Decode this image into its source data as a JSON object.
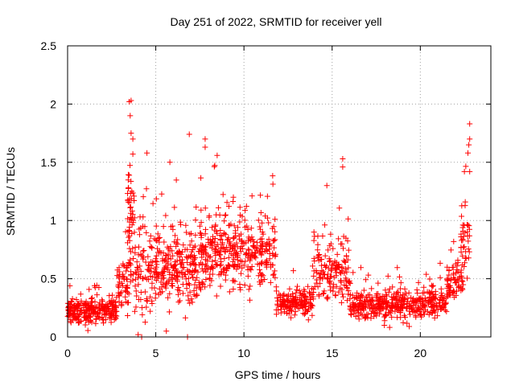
{
  "chart_data": {
    "type": "scatter",
    "title": "Day 251 of 2022, SRMTID for receiver yell",
    "xlabel": "GPS time / hours",
    "ylabel": "SRMTID / TECUs",
    "xlim": [
      0,
      24
    ],
    "ylim": [
      0,
      2.5
    ],
    "x_ticks": [
      0,
      5,
      10,
      15,
      20
    ],
    "y_ticks": [
      0,
      0.5,
      1,
      1.5,
      2,
      2.5
    ],
    "x_tick_labels": [
      "0",
      "5",
      "10",
      "15",
      "20"
    ],
    "y_tick_labels": [
      "0",
      "0.5",
      "1",
      "1.5",
      "2",
      "2.5"
    ],
    "grid": true,
    "marker": "+",
    "marker_color": "#ff0000",
    "segments": [
      {
        "x_start": 0.0,
        "x_end": 2.8,
        "mean": 0.22,
        "spread": 0.1,
        "count": 260
      },
      {
        "x_start": 2.8,
        "x_end": 3.5,
        "mean": 0.45,
        "spread": 0.25,
        "count": 50
      },
      {
        "x_start": 3.4,
        "x_end": 3.8,
        "mean": 1.0,
        "spread": 0.45,
        "count": 60
      },
      {
        "x_start": 3.8,
        "x_end": 5.0,
        "mean": 0.55,
        "spread": 0.35,
        "count": 90
      },
      {
        "x_start": 5.0,
        "x_end": 7.5,
        "mean": 0.6,
        "spread": 0.3,
        "count": 230
      },
      {
        "x_start": 7.5,
        "x_end": 11.8,
        "mean": 0.72,
        "spread": 0.28,
        "count": 380
      },
      {
        "x_start": 11.8,
        "x_end": 13.9,
        "mean": 0.3,
        "spread": 0.12,
        "count": 160
      },
      {
        "x_start": 13.9,
        "x_end": 16.0,
        "mean": 0.6,
        "spread": 0.3,
        "count": 150
      },
      {
        "x_start": 16.0,
        "x_end": 21.5,
        "mean": 0.28,
        "spread": 0.12,
        "count": 420
      },
      {
        "x_start": 21.5,
        "x_end": 22.4,
        "mean": 0.48,
        "spread": 0.18,
        "count": 70
      },
      {
        "x_start": 22.3,
        "x_end": 22.8,
        "mean": 0.75,
        "spread": 0.35,
        "count": 40
      }
    ],
    "notable_points": [
      {
        "x": 3.5,
        "y": 2.02
      },
      {
        "x": 3.6,
        "y": 2.03
      },
      {
        "x": 3.55,
        "y": 1.9
      },
      {
        "x": 3.6,
        "y": 1.75
      },
      {
        "x": 3.7,
        "y": 1.7
      },
      {
        "x": 3.7,
        "y": 1.57
      },
      {
        "x": 4.5,
        "y": 1.58
      },
      {
        "x": 5.8,
        "y": 1.5
      },
      {
        "x": 6.9,
        "y": 1.74
      },
      {
        "x": 7.8,
        "y": 1.7
      },
      {
        "x": 7.8,
        "y": 1.63
      },
      {
        "x": 15.6,
        "y": 1.53
      },
      {
        "x": 15.6,
        "y": 1.46
      },
      {
        "x": 14.7,
        "y": 1.3
      },
      {
        "x": 22.8,
        "y": 1.83
      },
      {
        "x": 22.8,
        "y": 1.7
      },
      {
        "x": 22.75,
        "y": 1.65
      },
      {
        "x": 22.7,
        "y": 1.58
      },
      {
        "x": 22.8,
        "y": 1.42
      },
      {
        "x": 22.5,
        "y": 1.42
      },
      {
        "x": 4.2,
        "y": 0.0
      },
      {
        "x": 4.0,
        "y": 0.02
      },
      {
        "x": 6.8,
        "y": 0.0
      },
      {
        "x": 5.6,
        "y": 0.05
      }
    ]
  }
}
